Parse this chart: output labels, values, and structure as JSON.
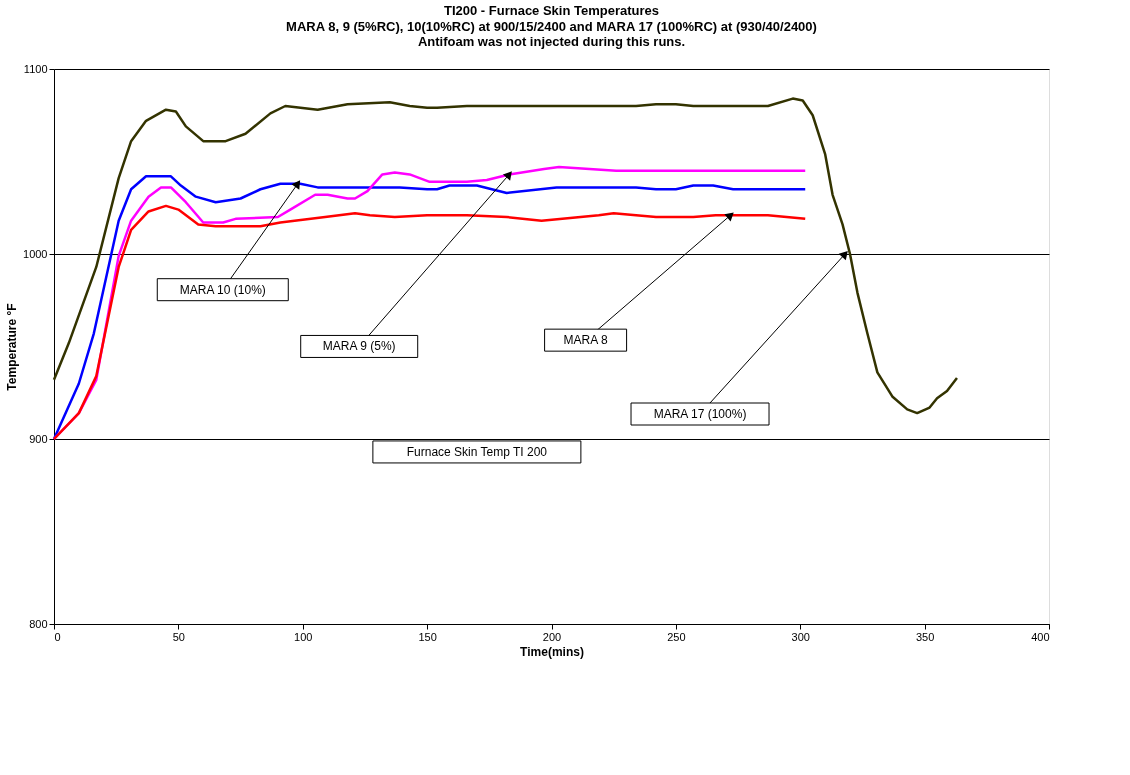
{
  "chart_data": {
    "type": "line",
    "title": "TI200 - Furnace Skin Temperatures",
    "subtitle": [
      "MARA 8, 9 (5%RC), 10(10%RC) at 900/15/2400 and MARA 17 (100%RC) at (930/40/2400)",
      "Antifoam was not injected during this runs."
    ],
    "xlabel": "Time(mins)",
    "ylabel": "Temperature  °F",
    "xlim": [
      0,
      400
    ],
    "xticks": [
      0,
      50,
      100,
      150,
      200,
      250,
      300,
      350,
      400
    ],
    "ylim": [
      800,
      1100
    ],
    "yticks": [
      800,
      900,
      1000,
      1100
    ],
    "grid": "y",
    "marker": "none",
    "line_style": "solid",
    "series": [
      {
        "color": "#333300",
        "x": [
          0,
          6,
          17,
          26,
          31,
          37,
          45,
          49,
          53,
          60,
          69,
          77,
          87,
          93,
          106,
          118,
          135,
          143,
          150,
          154,
          166,
          174,
          182,
          234,
          242,
          250,
          257,
          287,
          297,
          301,
          305,
          310,
          313,
          317,
          320,
          323,
          327,
          331,
          337,
          343,
          347,
          352,
          355,
          359,
          363
        ],
        "values": [
          932,
          952,
          993,
          1041,
          1061,
          1072,
          1078,
          1077,
          1069,
          1061,
          1061,
          1065,
          1076,
          1080,
          1078,
          1081,
          1082,
          1080,
          1079,
          1079,
          1080,
          1080,
          1080,
          1080,
          1081,
          1081,
          1080,
          1080,
          1084,
          1083,
          1075,
          1054,
          1032,
          1016,
          1000,
          979,
          957,
          936,
          923,
          916,
          914,
          917,
          922,
          926,
          933
        ]
      },
      {
        "color": "#0000ff",
        "x": [
          0,
          10,
          16,
          26,
          31,
          37,
          47,
          51,
          57,
          65,
          75,
          83,
          91,
          99,
          106,
          126,
          139,
          150,
          154,
          159,
          170,
          182,
          202,
          234,
          242,
          250,
          257,
          265,
          273,
          302
        ],
        "values": [
          900,
          930,
          957,
          1018,
          1035,
          1042,
          1042,
          1037,
          1031,
          1028,
          1030,
          1035,
          1038,
          1038,
          1036,
          1036,
          1036,
          1035,
          1035,
          1037,
          1037,
          1033,
          1036,
          1036,
          1035,
          1035,
          1037,
          1037,
          1035,
          1035
        ]
      },
      {
        "color": "#ff00ff",
        "x": [
          0,
          10,
          17,
          26,
          31,
          38,
          43,
          47,
          53,
          60,
          68,
          73,
          90,
          95,
          105,
          110,
          118,
          121,
          126,
          132,
          137,
          143,
          151,
          166,
          174,
          183,
          197,
          203,
          226,
          242,
          250,
          279,
          287,
          302
        ],
        "values": [
          900,
          914,
          932,
          999,
          1018,
          1031,
          1036,
          1036,
          1028,
          1017,
          1017,
          1019,
          1020,
          1024,
          1032,
          1032,
          1030,
          1030,
          1034,
          1043,
          1044,
          1043,
          1039,
          1039,
          1040,
          1043,
          1046,
          1047,
          1045,
          1045,
          1045,
          1045,
          1045,
          1045
        ]
      },
      {
        "color": "#ff0000",
        "x": [
          0,
          10,
          17,
          26,
          31,
          38,
          45,
          50,
          58,
          65,
          83,
          91,
          109,
          121,
          127,
          137,
          150,
          158,
          166,
          182,
          196,
          219,
          225,
          234,
          242,
          257,
          266,
          287,
          302
        ],
        "values": [
          900,
          914,
          934,
          993,
          1013,
          1023,
          1026,
          1024,
          1016,
          1015,
          1015,
          1017,
          1020,
          1022,
          1021,
          1020,
          1021,
          1021,
          1021,
          1020,
          1018,
          1021,
          1022,
          1021,
          1020,
          1020,
          1021,
          1021,
          1019
        ]
      }
    ],
    "annotations": [
      {
        "text": "MARA 10 (10%)",
        "x": 98,
        "y": 1038
      },
      {
        "text": "MARA 9 (5%)",
        "x": 183,
        "y": 1043
      },
      {
        "text": "MARA 8",
        "x": 272,
        "y": 1021
      },
      {
        "text": "MARA 17 (100%)",
        "x": 318,
        "y": 1000
      },
      "Furnace Skin Temp TI 200"
    ]
  }
}
